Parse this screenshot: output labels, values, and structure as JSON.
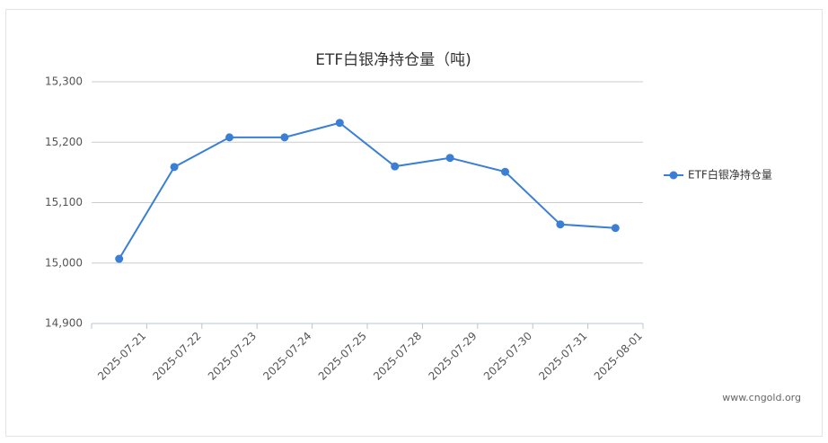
{
  "chart_data": {
    "type": "line",
    "title": "ETF白银净持仓量（吨)",
    "categories": [
      "2025-07-21",
      "2025-07-22",
      "2025-07-23",
      "2025-07-24",
      "2025-07-25",
      "2025-07-28",
      "2025-07-29",
      "2025-07-30",
      "2025-07-31",
      "2025-08-01"
    ],
    "series": [
      {
        "name": "ETF白银净持仓量",
        "color": "#3a7fd5",
        "values": [
          15007,
          15159,
          15208,
          15208,
          15232,
          15160,
          15174,
          15151,
          15064,
          15058
        ]
      }
    ],
    "ylim": [
      14900,
      15300
    ],
    "yticks": [
      {
        "value": 14900,
        "label": "14,900"
      },
      {
        "value": 15000,
        "label": "15,000"
      },
      {
        "value": 15100,
        "label": "15,100"
      },
      {
        "value": 15200,
        "label": "15,200"
      },
      {
        "value": 15300,
        "label": "15,300"
      }
    ],
    "grid": true,
    "legend": "right"
  },
  "watermark": "www.cngold.org"
}
